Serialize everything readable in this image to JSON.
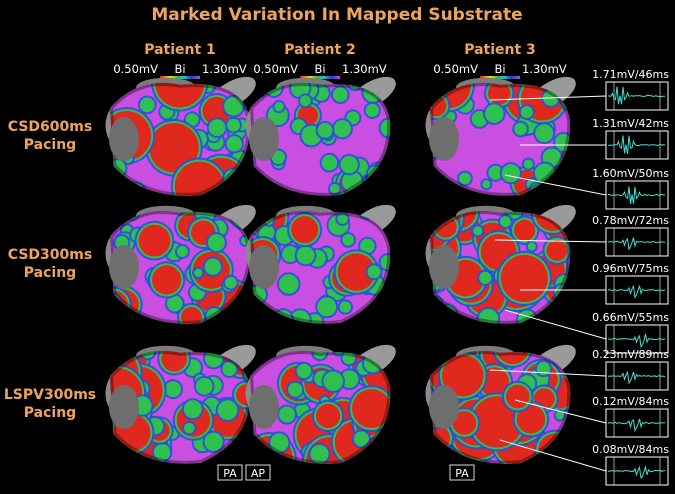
{
  "title": "Marked Variation In Mapped Substrate",
  "columns": [
    {
      "label": "Patient 1",
      "scale_min": "0.50mV",
      "scale_unit": "Bi",
      "scale_max": "1.30mV"
    },
    {
      "label": "Patient 2",
      "scale_min": "0.50mV",
      "scale_unit": "Bi",
      "scale_max": "1.30mV"
    },
    {
      "label": "Patient 3",
      "scale_min": "0.50mV",
      "scale_unit": "Bi",
      "scale_max": "1.30mV"
    }
  ],
  "rows": [
    {
      "lines": [
        "CSD600ms",
        "Pacing"
      ]
    },
    {
      "lines": [
        "CSD300ms",
        "Pacing"
      ]
    },
    {
      "lines": [
        "LSPV300ms",
        "Pacing"
      ]
    }
  ],
  "signals": [
    "1.71mV/46ms",
    "1.31mV/42ms",
    "1.60mV/50ms",
    "0.78mV/72ms",
    "0.96mV/75ms",
    "0.66mV/55ms",
    "0.23mV/89ms",
    "0.12mV/84ms",
    "0.08mV/84ms"
  ],
  "views": [
    "PA",
    "AP",
    "PA"
  ]
}
